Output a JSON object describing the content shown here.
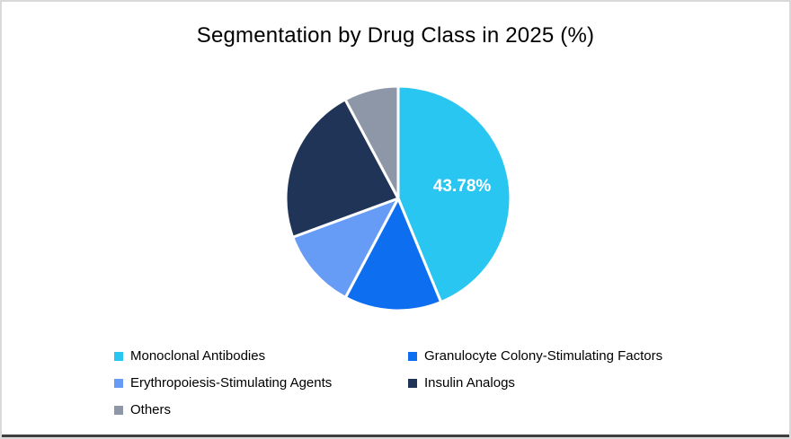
{
  "title": "Segmentation by Drug Class in 2025 (%)",
  "chart_data": {
    "type": "pie",
    "title": "Segmentation by Drug Class in 2025 (%)",
    "labels": [
      "Monoclonal Antibodies",
      "Granulocyte Colony-Stimulating Factors",
      "Erythropoiesis-Stimulating Agents",
      "Insulin Analogs",
      "Others"
    ],
    "values": [
      43.78,
      14.0,
      11.6,
      22.8,
      7.82
    ],
    "colors": [
      "#29C6F2",
      "#0D6EF0",
      "#669CF5",
      "#1F3456",
      "#8D97A8"
    ],
    "data_labels": [
      "43.78%",
      "",
      "",
      "",
      ""
    ],
    "data_label_color": "#FFFFFF",
    "start_angle_deg": 0,
    "direction": "clockwise",
    "slice_separator_color": "#FFFFFF",
    "legend_position": "bottom"
  }
}
